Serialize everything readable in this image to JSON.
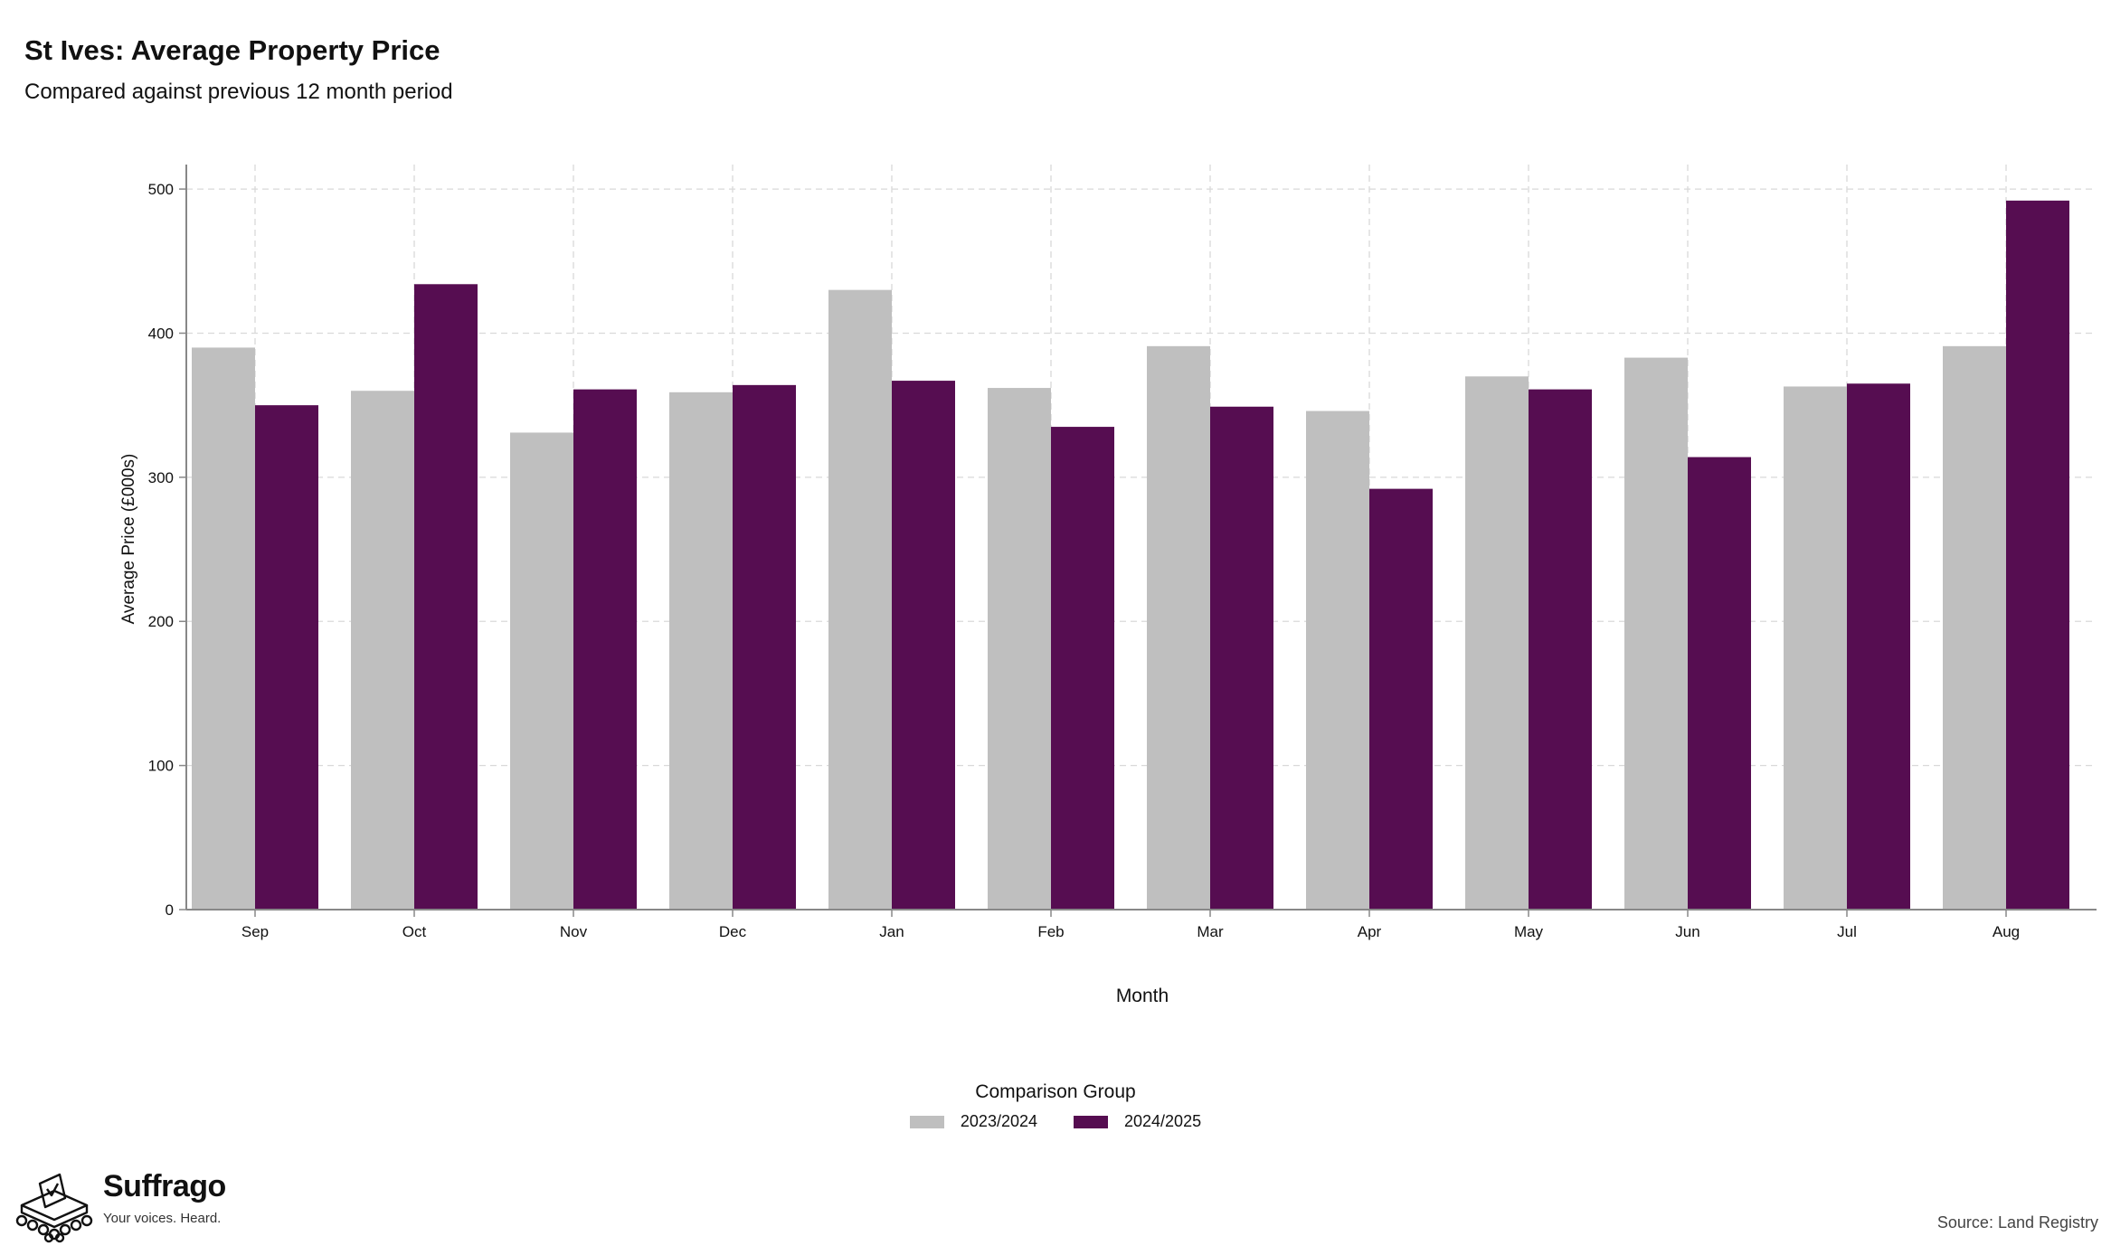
{
  "chart_data": {
    "type": "bar",
    "title": "St Ives: Average Property Price",
    "subtitle": "Compared against previous 12 month period",
    "xlabel": "Month",
    "ylabel": "Average Price (£000s)",
    "ylim": [
      0,
      517
    ],
    "yticks": [
      0,
      100,
      200,
      300,
      400,
      500
    ],
    "grid": true,
    "legend_title": "Comparison Group",
    "legend_position": "bottom",
    "categories": [
      "Sep",
      "Oct",
      "Nov",
      "Dec",
      "Jan",
      "Feb",
      "Mar",
      "Apr",
      "May",
      "Jun",
      "Jul",
      "Aug"
    ],
    "series": [
      {
        "name": "2023/2024",
        "color": "#bfbfbf",
        "values": [
          390,
          360,
          331,
          359,
          430,
          362,
          391,
          346,
          370,
          383,
          363,
          391
        ]
      },
      {
        "name": "2024/2025",
        "color": "#560d51",
        "values": [
          350,
          434,
          361,
          364,
          367,
          335,
          349,
          292,
          361,
          314,
          365,
          492
        ]
      }
    ]
  },
  "branding": {
    "name": "Suffrago",
    "tagline": "Your voices. Heard."
  },
  "source": "Source: Land Registry"
}
